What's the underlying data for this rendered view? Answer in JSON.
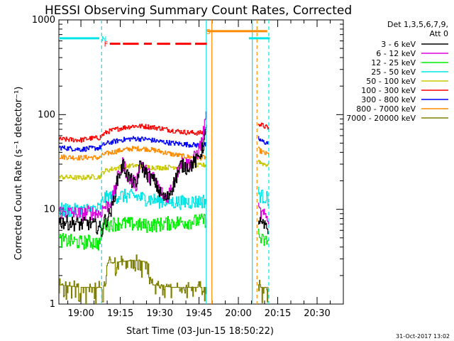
{
  "chart_data": {
    "type": "line",
    "title": "HESSI Observing Summary Count Rates, Corrected",
    "ylabel": "Corrected Count Rate (s⁻¹ detector⁻¹)",
    "xlabel": "Start Time (03-Jun-15 18:50:22)",
    "y_scale": "log",
    "ylim": [
      1,
      1000
    ],
    "xlim_minutes": [
      -8.4,
      100.0
    ],
    "x_ticks": [
      {
        "label": "19:00",
        "min": 0
      },
      {
        "label": "19:15",
        "min": 15
      },
      {
        "label": "19:30",
        "min": 30
      },
      {
        "label": "19:45",
        "min": 45
      },
      {
        "label": "20:00",
        "min": 60
      },
      {
        "label": "20:15",
        "min": 75
      },
      {
        "label": "20:30",
        "min": 90
      }
    ],
    "y_ticks": [
      {
        "label": "1",
        "value": 1
      },
      {
        "label": "10",
        "value": 10
      },
      {
        "label": "100",
        "value": 100
      },
      {
        "label": "1000",
        "value": 1000
      }
    ],
    "legend": {
      "header": [
        "Det 1,3,5,6,7,9,",
        "Att 0"
      ],
      "placement": "right"
    },
    "series": [
      {
        "name": "3 - 6 keV",
        "color": "#000000",
        "base": 7,
        "points": [
          [
            -8.4,
            7.5
          ],
          [
            0,
            7
          ],
          [
            3,
            7.2
          ],
          [
            7,
            6.5
          ],
          [
            8,
            5.8
          ],
          [
            8.5,
            7.5
          ],
          [
            10,
            8
          ],
          [
            12,
            11
          ],
          [
            14,
            22
          ],
          [
            15,
            25
          ],
          [
            16,
            30
          ],
          [
            17,
            26
          ],
          [
            18,
            22
          ],
          [
            20,
            19
          ],
          [
            21,
            17
          ],
          [
            22,
            27
          ],
          [
            23,
            30
          ],
          [
            24,
            26
          ],
          [
            26,
            22
          ],
          [
            28,
            20
          ],
          [
            30,
            15
          ],
          [
            32,
            13
          ],
          [
            33,
            13.5
          ],
          [
            35,
            18
          ],
          [
            37,
            25
          ],
          [
            38,
            30
          ],
          [
            40,
            28
          ],
          [
            42,
            30
          ],
          [
            44,
            33
          ],
          [
            46,
            42
          ],
          [
            47,
            55
          ],
          [
            48,
            75
          ]
        ],
        "gap_after": [
          [
            48.3,
            67.5
          ]
        ],
        "tail": [
          [
            67.5,
            8
          ],
          [
            68.5,
            7
          ],
          [
            70,
            6.5
          ],
          [
            71.5,
            6
          ]
        ]
      },
      {
        "name": "6 - 12 keV",
        "color": "#dd00dd",
        "base": 9,
        "points": [
          [
            -8.4,
            9.5
          ],
          [
            0,
            9
          ],
          [
            3,
            9.4
          ],
          [
            7,
            9
          ],
          [
            8.5,
            10.5
          ],
          [
            10,
            11
          ],
          [
            12,
            13
          ],
          [
            14,
            22
          ],
          [
            15,
            27
          ],
          [
            16,
            31
          ],
          [
            17,
            26
          ],
          [
            18,
            22
          ],
          [
            20,
            20
          ],
          [
            21,
            18
          ],
          [
            22,
            29
          ],
          [
            23,
            32
          ],
          [
            24,
            27
          ],
          [
            26,
            23
          ],
          [
            28,
            21
          ],
          [
            30,
            16
          ],
          [
            32,
            13.5
          ],
          [
            33,
            14
          ],
          [
            35,
            19
          ],
          [
            37,
            26
          ],
          [
            38,
            32
          ],
          [
            40,
            30
          ],
          [
            42,
            32
          ],
          [
            44,
            38
          ],
          [
            46,
            52
          ],
          [
            47,
            75
          ],
          [
            48,
            115
          ]
        ],
        "tail": [
          [
            67.5,
            10
          ],
          [
            68.5,
            9
          ],
          [
            70,
            8.5
          ],
          [
            71.5,
            8
          ]
        ]
      },
      {
        "name": "12 - 25 keV",
        "color": "#00ee00",
        "base": 5,
        "points": [
          [
            -8.4,
            4.8
          ],
          [
            0,
            4.5
          ],
          [
            3,
            4.6
          ],
          [
            7,
            4.4
          ],
          [
            8.5,
            7
          ],
          [
            10,
            7
          ],
          [
            15,
            7.2
          ],
          [
            20,
            7
          ],
          [
            25,
            6.8
          ],
          [
            30,
            7
          ],
          [
            35,
            7.3
          ],
          [
            40,
            7.4
          ],
          [
            45,
            7.6
          ],
          [
            48,
            7.8
          ]
        ],
        "tail": [
          [
            67.5,
            5.5
          ],
          [
            68.5,
            4.8
          ],
          [
            70,
            4.6
          ],
          [
            71.5,
            4.7
          ]
        ]
      },
      {
        "name": "25 - 50 keV",
        "color": "#00e5e5",
        "base": 10,
        "points": [
          [
            -8.4,
            10
          ],
          [
            0,
            9.8
          ],
          [
            3,
            10
          ],
          [
            7,
            10.2
          ],
          [
            8.5,
            13
          ],
          [
            10,
            13.5
          ],
          [
            15,
            14
          ],
          [
            20,
            13.8
          ],
          [
            25,
            13
          ],
          [
            30,
            12.4
          ],
          [
            35,
            12
          ],
          [
            40,
            12
          ],
          [
            45,
            12.2
          ],
          [
            48,
            12.5
          ]
        ],
        "tail": [
          [
            67.5,
            15
          ],
          [
            68.5,
            14
          ],
          [
            70,
            13.5
          ],
          [
            71.5,
            13
          ]
        ]
      },
      {
        "name": "50 - 100 keV",
        "color": "#c8c800",
        "base": 22,
        "points": [
          [
            -8.4,
            22
          ],
          [
            0,
            21.5
          ],
          [
            3,
            22
          ],
          [
            7,
            22
          ],
          [
            8.5,
            25
          ],
          [
            10,
            26
          ],
          [
            15,
            28
          ],
          [
            20,
            29
          ],
          [
            25,
            28
          ],
          [
            30,
            27.5
          ],
          [
            35,
            28
          ],
          [
            40,
            28.5
          ],
          [
            45,
            29
          ],
          [
            48,
            29.5
          ]
        ],
        "tail": [
          [
            67.5,
            33
          ],
          [
            68.5,
            31
          ],
          [
            70,
            30
          ],
          [
            71.5,
            29.5
          ]
        ]
      },
      {
        "name": "100 - 300 keV",
        "color": "#ff0000",
        "base": 55,
        "points": [
          [
            -8.4,
            55
          ],
          [
            0,
            54
          ],
          [
            3,
            56
          ],
          [
            7,
            57
          ],
          [
            8.5,
            62
          ],
          [
            10,
            66
          ],
          [
            15,
            72
          ],
          [
            20,
            76
          ],
          [
            25,
            75
          ],
          [
            30,
            72
          ],
          [
            35,
            68
          ],
          [
            40,
            65
          ],
          [
            45,
            64
          ],
          [
            48,
            65
          ]
        ],
        "tail": [
          [
            67.5,
            82
          ],
          [
            68.5,
            78
          ],
          [
            70,
            75
          ],
          [
            71.5,
            72
          ]
        ]
      },
      {
        "name": "300 - 800 keV",
        "color": "#0000ff",
        "base": 45,
        "points": [
          [
            -8.4,
            45
          ],
          [
            0,
            43
          ],
          [
            3,
            44
          ],
          [
            7,
            44.5
          ],
          [
            8.5,
            48
          ],
          [
            10,
            50
          ],
          [
            15,
            54
          ],
          [
            20,
            56
          ],
          [
            25,
            55
          ],
          [
            30,
            52
          ],
          [
            35,
            50
          ],
          [
            40,
            48.5
          ],
          [
            45,
            47.5
          ],
          [
            48,
            48
          ]
        ],
        "tail": [
          [
            67.5,
            56
          ],
          [
            68.5,
            53
          ],
          [
            70,
            51
          ],
          [
            71.5,
            50
          ]
        ]
      },
      {
        "name": "800 - 7000 keV",
        "color": "#ff8c00",
        "base": 36,
        "points": [
          [
            -8.4,
            36
          ],
          [
            0,
            35
          ],
          [
            3,
            35.5
          ],
          [
            7,
            35
          ],
          [
            8.5,
            38
          ],
          [
            10,
            39
          ],
          [
            15,
            42
          ],
          [
            20,
            44
          ],
          [
            25,
            43.5
          ],
          [
            30,
            41
          ],
          [
            35,
            38
          ],
          [
            40,
            36
          ],
          [
            45,
            35
          ],
          [
            48,
            35.5
          ]
        ],
        "tail": [
          [
            67.5,
            43
          ],
          [
            68.5,
            41
          ],
          [
            70,
            39
          ],
          [
            71.5,
            38
          ]
        ]
      },
      {
        "name": "7000 - 20000 keV",
        "color": "#808000",
        "base": 1.5,
        "points": [
          [
            -8.4,
            1.6
          ],
          [
            0,
            1.5
          ],
          [
            7,
            1.5
          ],
          [
            8.5,
            1.5
          ],
          [
            10,
            2.7
          ],
          [
            15,
            2.8
          ],
          [
            20,
            2.9
          ],
          [
            25,
            2.8
          ],
          [
            27,
            1.6
          ],
          [
            35,
            1.5
          ],
          [
            40,
            1.5
          ],
          [
            48,
            1.5
          ]
        ],
        "tail": [
          [
            67.5,
            1.6
          ],
          [
            68.5,
            1.5
          ],
          [
            70,
            1.5
          ],
          [
            71.5,
            1.5
          ]
        ]
      }
    ],
    "flags": [
      {
        "label": "N",
        "color": "#00e5e5",
        "x_label_min": 7.8,
        "y": 640,
        "segments": [
          [
            -8.4,
            7.0
          ],
          [
            64,
            72
          ]
        ]
      },
      {
        "label": "F",
        "color": "#ff0000",
        "x_label_min": 8.8,
        "y": 560,
        "segments": [
          [
            11,
            15
          ],
          [
            16,
            22
          ],
          [
            24,
            27
          ],
          [
            29,
            34
          ],
          [
            36,
            42
          ],
          [
            43.5,
            48
          ]
        ]
      },
      {
        "label": "S",
        "color": "#ff8c00",
        "x_label_min": 47.7,
        "y": 760,
        "segments": [
          [
            48.2,
            71
          ]
        ]
      }
    ],
    "vlines": [
      {
        "min": 7.9,
        "color": "#00e5e5",
        "dash": true
      },
      {
        "min": 47.8,
        "color": "#00e5e5",
        "dash": false
      },
      {
        "min": 49.9,
        "color": "#ff8c00",
        "dash": false
      },
      {
        "min": 65.3,
        "color": "#00e5e5",
        "dash": false
      },
      {
        "min": 67.1,
        "color": "#ff8c00",
        "dash": true
      },
      {
        "min": 71.6,
        "color": "#00e5e5",
        "dash": true
      }
    ],
    "footer_date": "31-Oct-2017 13:02"
  }
}
